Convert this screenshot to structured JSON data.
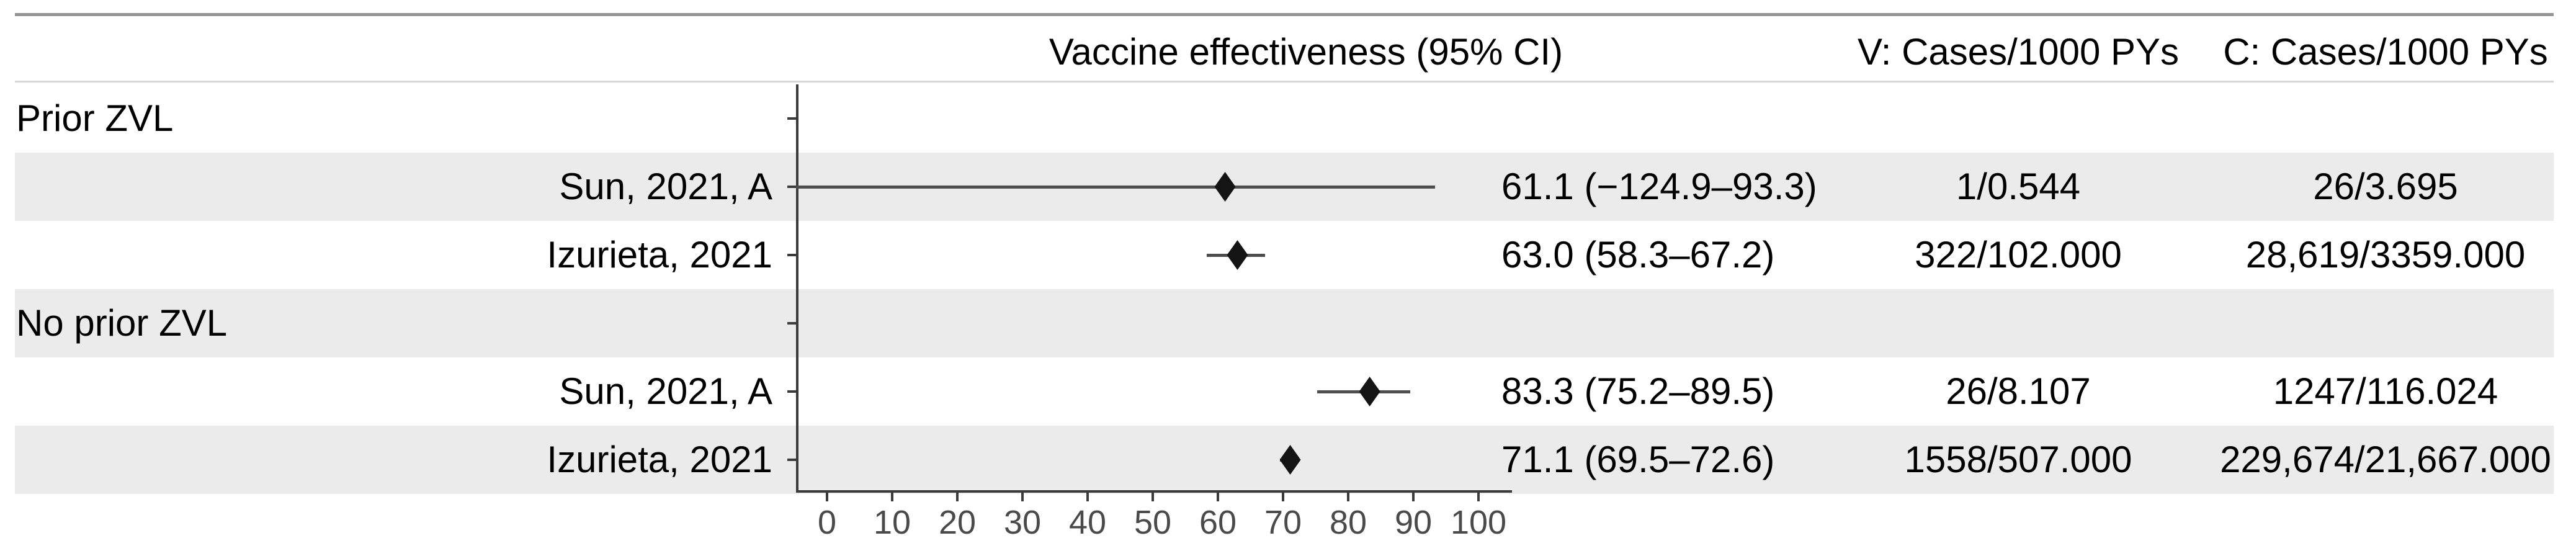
{
  "header": {
    "effect_col": "Vaccine effectiveness (95% CI)",
    "v_col": "V: Cases/1000 PYs",
    "c_col": "C: Cases/1000 PYs"
  },
  "rows": [
    {
      "kind": "group",
      "label": "Prior ZVL",
      "ve": "",
      "v": "",
      "c": ""
    },
    {
      "kind": "study",
      "label": "Sun, 2021, A",
      "ve": "61.1 (−124.9–93.3)",
      "v": "1/0.544",
      "c": "26/3.695"
    },
    {
      "kind": "study",
      "label": "Izurieta, 2021",
      "ve": "63.0 (58.3–67.2)",
      "v": "322/102.000",
      "c": "28,619/3359.000"
    },
    {
      "kind": "group",
      "label": "No prior ZVL",
      "ve": "",
      "v": "",
      "c": ""
    },
    {
      "kind": "study",
      "label": "Sun, 2021, A",
      "ve": "83.3 (75.2–89.5)",
      "v": "26/8.107",
      "c": "1247/116.024"
    },
    {
      "kind": "study",
      "label": "Izurieta, 2021",
      "ve": "71.1 (69.5–72.6)",
      "v": "1558/507.000",
      "c": "229,674/21,667.000"
    }
  ],
  "chart_data": {
    "type": "scatter",
    "subtype": "forest-plot",
    "title": "Vaccine effectiveness (95% CI)",
    "xlabel": "",
    "ylabel": "",
    "xlim": [
      0,
      100
    ],
    "x_ticks": [
      0,
      10,
      20,
      30,
      40,
      50,
      60,
      70,
      80,
      90,
      100
    ],
    "grid": false,
    "legend_position": "none",
    "groups": [
      {
        "label": "Prior ZVL",
        "studies": [
          {
            "label": "Sun, 2021, A",
            "estimate": 61.1,
            "ci_low": -124.9,
            "ci_high": 93.3,
            "ve_text": "61.1 (−124.9–93.3)",
            "v_cases_per_1000py": "1/0.544",
            "c_cases_per_1000py": "26/3.695"
          },
          {
            "label": "Izurieta, 2021",
            "estimate": 63.0,
            "ci_low": 58.3,
            "ci_high": 67.2,
            "ve_text": "63.0 (58.3–67.2)",
            "v_cases_per_1000py": "322/102.000",
            "c_cases_per_1000py": "28,619/3359.000"
          }
        ]
      },
      {
        "label": "No prior ZVL",
        "studies": [
          {
            "label": "Sun, 2021, A",
            "estimate": 83.3,
            "ci_low": 75.2,
            "ci_high": 89.5,
            "ve_text": "83.3 (75.2–89.5)",
            "v_cases_per_1000py": "26/8.107",
            "c_cases_per_1000py": "1247/116.024"
          },
          {
            "label": "Izurieta, 2021",
            "estimate": 71.1,
            "ci_low": 69.5,
            "ci_high": 72.6,
            "ve_text": "71.1 (69.5–72.6)",
            "v_cases_per_1000py": "1558/507.000",
            "c_cases_per_1000py": "229,674/21,667.000"
          }
        ]
      }
    ]
  },
  "colors": {
    "band": "#ebebeb",
    "axis": "#3b3b3b",
    "ci_line": "#4e4e4e",
    "marker": "#141414",
    "top_rule": "#949494",
    "header_rule": "#d6d6d6",
    "tick_label": "#4a4a4a",
    "text": "#000000"
  }
}
